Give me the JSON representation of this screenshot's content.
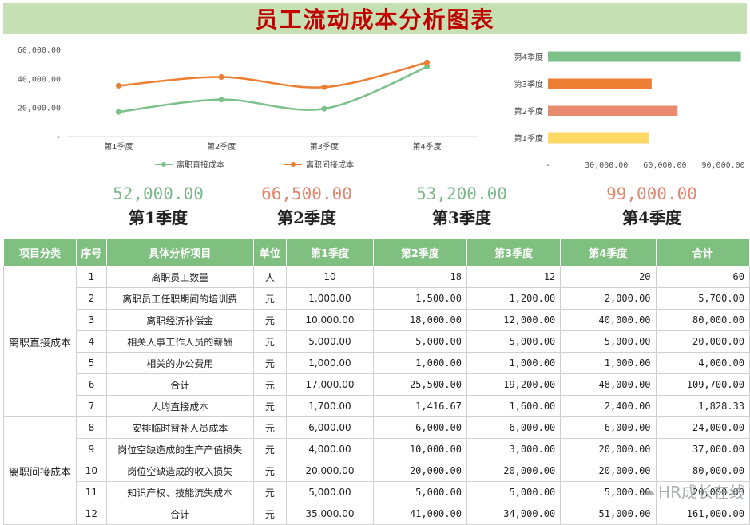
{
  "title": "员工流动成本分析图表",
  "colors": {
    "green": "#7cc08a",
    "orange": "#ed7d31",
    "salmon": "#e88a6e",
    "yellow": "#ffd966",
    "title_bg": "#c6e0b4",
    "title_text": "#c00000",
    "header_bg": "#7fbf80"
  },
  "chart_data": [
    {
      "type": "line",
      "categories": [
        "第1季度",
        "第2季度",
        "第3季度",
        "第4季度"
      ],
      "series": [
        {
          "name": "离职直接成本",
          "values": [
            17000,
            25500,
            19200,
            48000
          ],
          "color": "#7cc08a"
        },
        {
          "name": "离职间接成本",
          "values": [
            35000,
            41000,
            34000,
            51000
          ],
          "color": "#ed7d31"
        }
      ],
      "ylim": [
        0,
        60000
      ],
      "yticks": [
        "-",
        "20,000.00",
        "40,000.00",
        "60,000.00"
      ],
      "legend": "bottom"
    },
    {
      "type": "bar",
      "orientation": "horizontal",
      "categories": [
        "第1季度",
        "第2季度",
        "第3季度",
        "第4季度"
      ],
      "values": [
        52000,
        66500,
        53200,
        99000
      ],
      "colors": [
        "#ffd966",
        "#e88a6e",
        "#ed7d31",
        "#7cc08a"
      ],
      "xlim": [
        0,
        100000
      ],
      "xticks": [
        "-",
        "30,000.00",
        "60,000.00",
        "90,000.00"
      ]
    }
  ],
  "kpis": [
    {
      "value": "52,000.00",
      "label": "第1季度",
      "color": "#7cb98a"
    },
    {
      "value": "66,500.00",
      "label": "第2季度",
      "color": "#e08870"
    },
    {
      "value": "53,200.00",
      "label": "第3季度",
      "color": "#7cb98a"
    },
    {
      "value": "99,000.00",
      "label": "第4季度",
      "color": "#e08870"
    }
  ],
  "table": {
    "headers": [
      "项目分类",
      "序号",
      "具体分析项目",
      "单位",
      "第1季度",
      "第2季度",
      "第3季度",
      "第4季度",
      "合计"
    ],
    "groups": [
      {
        "category": "离职直接成本",
        "rows": [
          [
            "1",
            "离职员工数量",
            "人",
            "10",
            "18",
            "12",
            "20",
            "60"
          ],
          [
            "2",
            "离职员工任职期间的培训费",
            "元",
            "1,000.00",
            "1,500.00",
            "1,200.00",
            "2,000.00",
            "5,700.00"
          ],
          [
            "3",
            "离职经济补偿金",
            "元",
            "10,000.00",
            "18,000.00",
            "12,000.00",
            "40,000.00",
            "80,000.00"
          ],
          [
            "4",
            "相关人事工作人员的薪酬",
            "元",
            "5,000.00",
            "5,000.00",
            "5,000.00",
            "5,000.00",
            "20,000.00"
          ],
          [
            "5",
            "相关的办公费用",
            "元",
            "1,000.00",
            "1,000.00",
            "1,000.00",
            "1,000.00",
            "4,000.00"
          ],
          [
            "6",
            "合计",
            "元",
            "17,000.00",
            "25,500.00",
            "19,200.00",
            "48,000.00",
            "109,700.00"
          ],
          [
            "7",
            "人均直接成本",
            "元",
            "1,700.00",
            "1,416.67",
            "1,600.00",
            "2,400.00",
            "1,828.33"
          ]
        ]
      },
      {
        "category": "离职间接成本",
        "rows": [
          [
            "8",
            "安排临时替补人员成本",
            "元",
            "6,000.00",
            "6,000.00",
            "6,000.00",
            "6,000.00",
            "24,000.00"
          ],
          [
            "9",
            "岗位空缺造成的生产产值损失",
            "元",
            "4,000.00",
            "10,000.00",
            "3,000.00",
            "20,000.00",
            "37,000.00"
          ],
          [
            "10",
            "岗位空缺造成的收入损失",
            "元",
            "20,000.00",
            "20,000.00",
            "20,000.00",
            "20,000.00",
            "80,000.00"
          ],
          [
            "11",
            "知识产权、技能流失成本",
            "元",
            "5,000.00",
            "5,000.00",
            "5,000.00",
            "5,000.00",
            "20,000.00"
          ],
          [
            "12",
            "合计",
            "元",
            "35,000.00",
            "41,000.00",
            "34,000.00",
            "51,000.00",
            "161,000.00"
          ]
        ]
      }
    ]
  },
  "watermark": "HR成长在线"
}
